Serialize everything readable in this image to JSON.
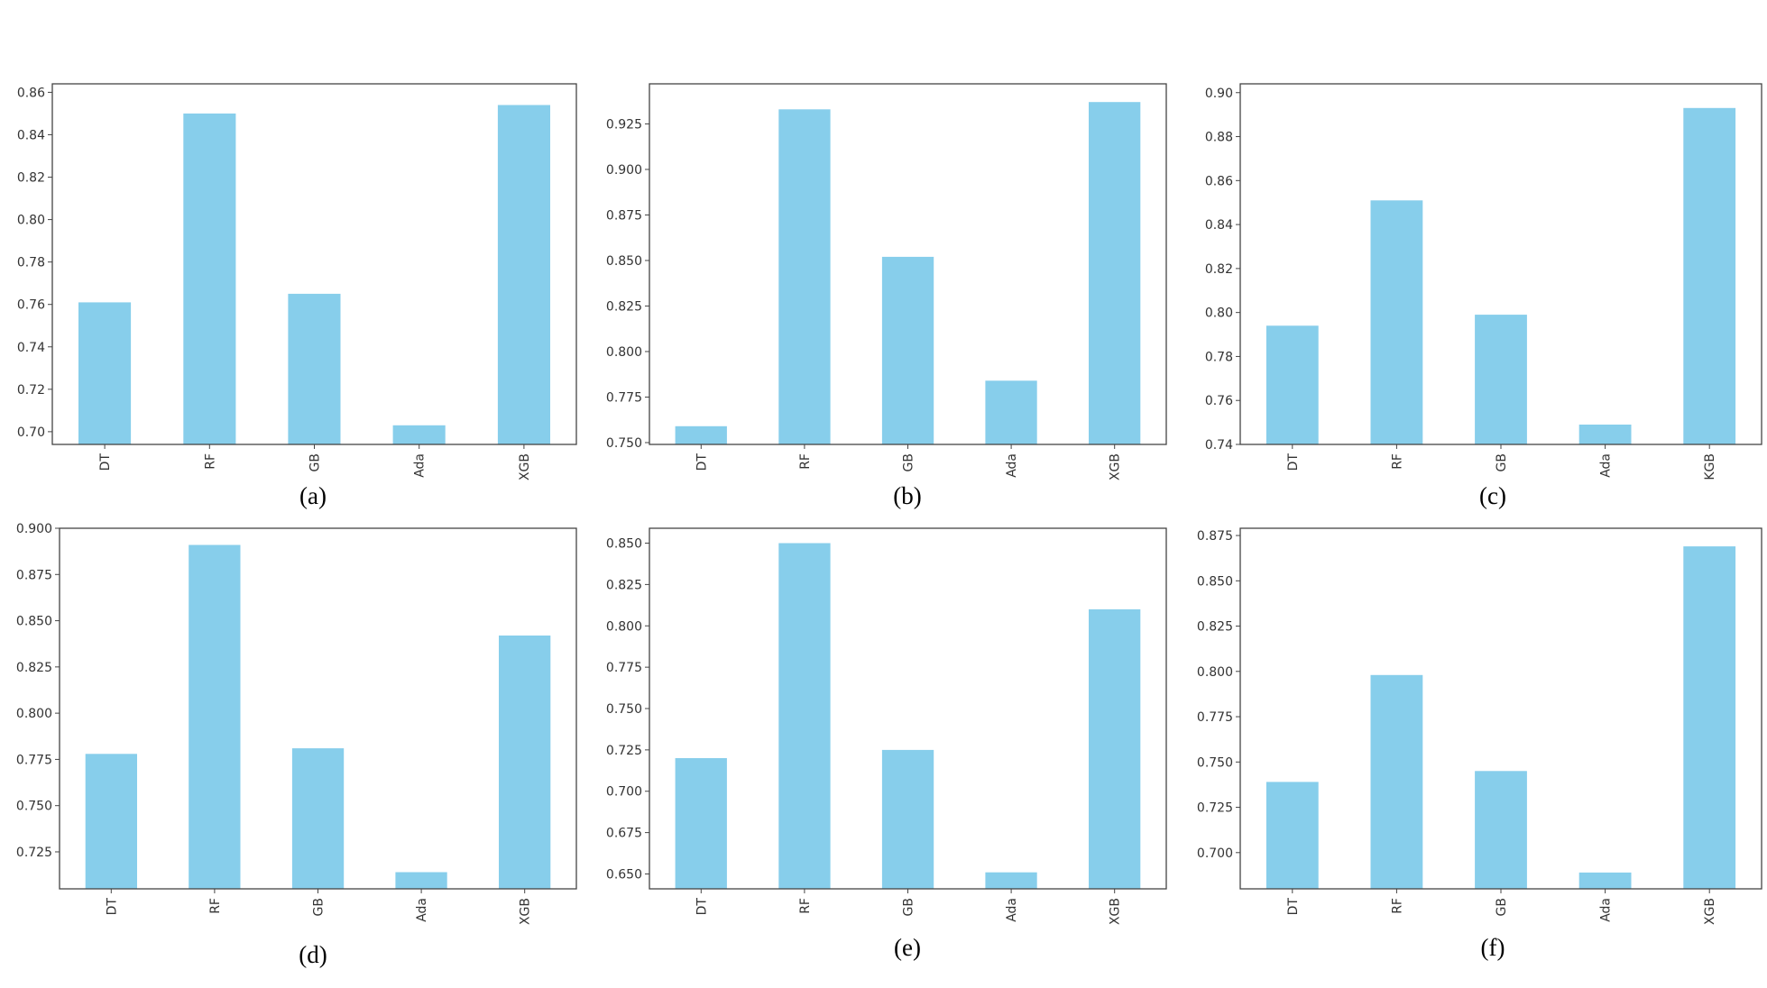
{
  "colors": {
    "bar": "#87CEEB",
    "axis": "#444444",
    "text": "#333333"
  },
  "chart_data": [
    {
      "type": "bar",
      "caption": "(a)",
      "categories": [
        "DT",
        "RF",
        "GB",
        "Ada",
        "XGB"
      ],
      "values": [
        0.761,
        0.85,
        0.765,
        0.703,
        0.854
      ],
      "ylim": [
        0.694,
        0.864
      ],
      "yticks": [
        "0.70",
        "0.72",
        "0.74",
        "0.76",
        "0.78",
        "0.80",
        "0.82",
        "0.84",
        "0.86"
      ],
      "xlabel": "",
      "ylabel": "",
      "grid": false
    },
    {
      "type": "bar",
      "caption": "(b)",
      "categories": [
        "DT",
        "RF",
        "GB",
        "Ada",
        "XGB"
      ],
      "values": [
        0.759,
        0.933,
        0.852,
        0.784,
        0.937
      ],
      "ylim": [
        0.749,
        0.947
      ],
      "yticks": [
        "0.750",
        "0.775",
        "0.800",
        "0.825",
        "0.850",
        "0.875",
        "0.900",
        "0.925"
      ],
      "xlabel": "",
      "ylabel": "",
      "grid": false
    },
    {
      "type": "bar",
      "caption": "(c)",
      "categories": [
        "DT",
        "RF",
        "GB",
        "Ada",
        "KGB"
      ],
      "values": [
        0.794,
        0.851,
        0.799,
        0.749,
        0.893
      ],
      "ylim": [
        0.74,
        0.904
      ],
      "yticks": [
        "0.74",
        "0.76",
        "0.78",
        "0.80",
        "0.82",
        "0.84",
        "0.86",
        "0.88",
        "0.90"
      ],
      "xlabel": "",
      "ylabel": "",
      "grid": false
    },
    {
      "type": "bar",
      "caption": "(d)",
      "categories": [
        "DT",
        "RF",
        "GB",
        "Ada",
        "XGB"
      ],
      "values": [
        0.778,
        0.891,
        0.781,
        0.714,
        0.842
      ],
      "ylim": [
        0.705,
        0.9
      ],
      "yticks": [
        "0.725",
        "0.750",
        "0.775",
        "0.800",
        "0.825",
        "0.850",
        "0.875",
        "0.900"
      ],
      "xlabel": "",
      "ylabel": "",
      "grid": false
    },
    {
      "type": "bar",
      "caption": "(e)",
      "categories": [
        "DT",
        "RF",
        "GB",
        "Ada",
        "XGB"
      ],
      "values": [
        0.72,
        0.85,
        0.725,
        0.651,
        0.81
      ],
      "ylim": [
        0.641,
        0.859
      ],
      "yticks": [
        "0.650",
        "0.675",
        "0.700",
        "0.725",
        "0.750",
        "0.775",
        "0.800",
        "0.825",
        "0.850"
      ],
      "xlabel": "",
      "ylabel": "",
      "grid": false
    },
    {
      "type": "bar",
      "caption": "(f)",
      "categories": [
        "DT",
        "RF",
        "GB",
        "Ada",
        "XGB"
      ],
      "values": [
        0.739,
        0.798,
        0.745,
        0.689,
        0.869
      ],
      "ylim": [
        0.68,
        0.879
      ],
      "yticks": [
        "0.700",
        "0.725",
        "0.750",
        "0.775",
        "0.800",
        "0.825",
        "0.850",
        "0.875"
      ],
      "xlabel": "",
      "ylabel": "",
      "grid": false
    }
  ]
}
